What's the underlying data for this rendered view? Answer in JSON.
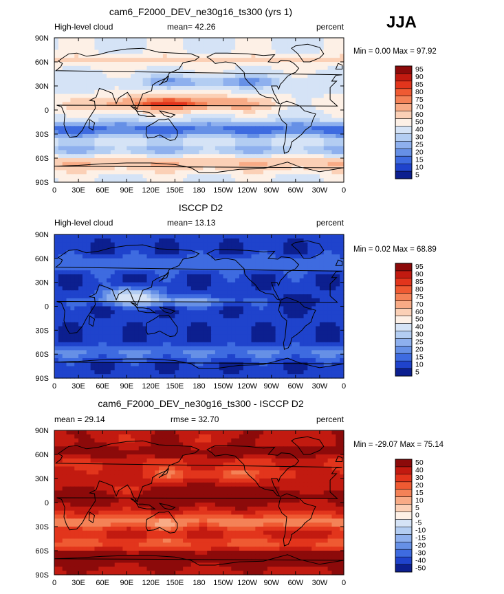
{
  "season": "JJA",
  "chart_data": [
    {
      "type": "heatmap",
      "title": "cam6_F2000_DEV_ne30g16_ts300 (yrs 1)",
      "left_label": "High-level cloud",
      "stat_text": "mean=  42.26",
      "units": "percent",
      "min_max": "Min =    0.00 Max =   97.92",
      "min": 0.0,
      "max": 97.92,
      "mean": 42.26,
      "palette": "model",
      "levels": [
        "95",
        "90",
        "85",
        "80",
        "75",
        "70",
        "60",
        "50",
        "40",
        "30",
        "25",
        "20",
        "15",
        "10",
        "5"
      ],
      "xlim": [
        0,
        360
      ],
      "ylim": [
        -90,
        90
      ]
    },
    {
      "type": "heatmap",
      "title": "ISCCP D2",
      "left_label": "High-level cloud",
      "stat_text": "mean=  13.13",
      "units": "percent",
      "min_max": "Min =    0.02 Max =   68.89",
      "min": 0.02,
      "max": 68.89,
      "mean": 13.13,
      "palette": "obs",
      "levels": [
        "95",
        "90",
        "85",
        "80",
        "75",
        "70",
        "60",
        "50",
        "40",
        "30",
        "25",
        "20",
        "15",
        "10",
        "5"
      ],
      "xlim": [
        0,
        360
      ],
      "ylim": [
        -90,
        90
      ]
    },
    {
      "type": "heatmap",
      "title": "cam6_F2000_DEV_ne30g16_ts300 - ISCCP D2",
      "left_label": "mean =   29.14",
      "stat_text": "rmse =   32.70",
      "units": "percent",
      "min_max": "Min = -29.07 Max =  75.14",
      "min": -29.07,
      "max": 75.14,
      "mean": 29.14,
      "rmse": 32.7,
      "palette": "diff",
      "levels": [
        "50",
        "40",
        "30",
        "20",
        "15",
        "10",
        "5",
        "0",
        "-5",
        "-10",
        "-15",
        "-20",
        "-30",
        "-40",
        "-50"
      ],
      "xlim": [
        0,
        360
      ],
      "ylim": [
        -90,
        90
      ]
    }
  ],
  "x_ticks": [
    "0",
    "30E",
    "60E",
    "90E",
    "120E",
    "150E",
    "180",
    "150W",
    "120W",
    "90W",
    "60W",
    "30W",
    "0"
  ],
  "y_ticks": [
    "90N",
    "60N",
    "30N",
    "0",
    "30S",
    "60S",
    "90S"
  ],
  "colors": {
    "model": [
      "#8c0a0a",
      "#c21a10",
      "#e2351c",
      "#ef5a32",
      "#f48257",
      "#f8ab86",
      "#fbd0b6",
      "#fdf0e6",
      "#d5e3f6",
      "#b3cdf2",
      "#8eb0ee",
      "#6690e6",
      "#3e6be0",
      "#1f43cc",
      "#0c1f8f"
    ],
    "diff": [
      "#8c0a0a",
      "#c21a10",
      "#e2351c",
      "#ef5a32",
      "#f48257",
      "#f8ab86",
      "#fbd0b6",
      "#fdf0e6",
      "#d5e3f6",
      "#b3cdf2",
      "#8eb0ee",
      "#6690e6",
      "#3e6be0",
      "#1f43cc",
      "#0c1f8f"
    ],
    "coast": "#000000"
  }
}
